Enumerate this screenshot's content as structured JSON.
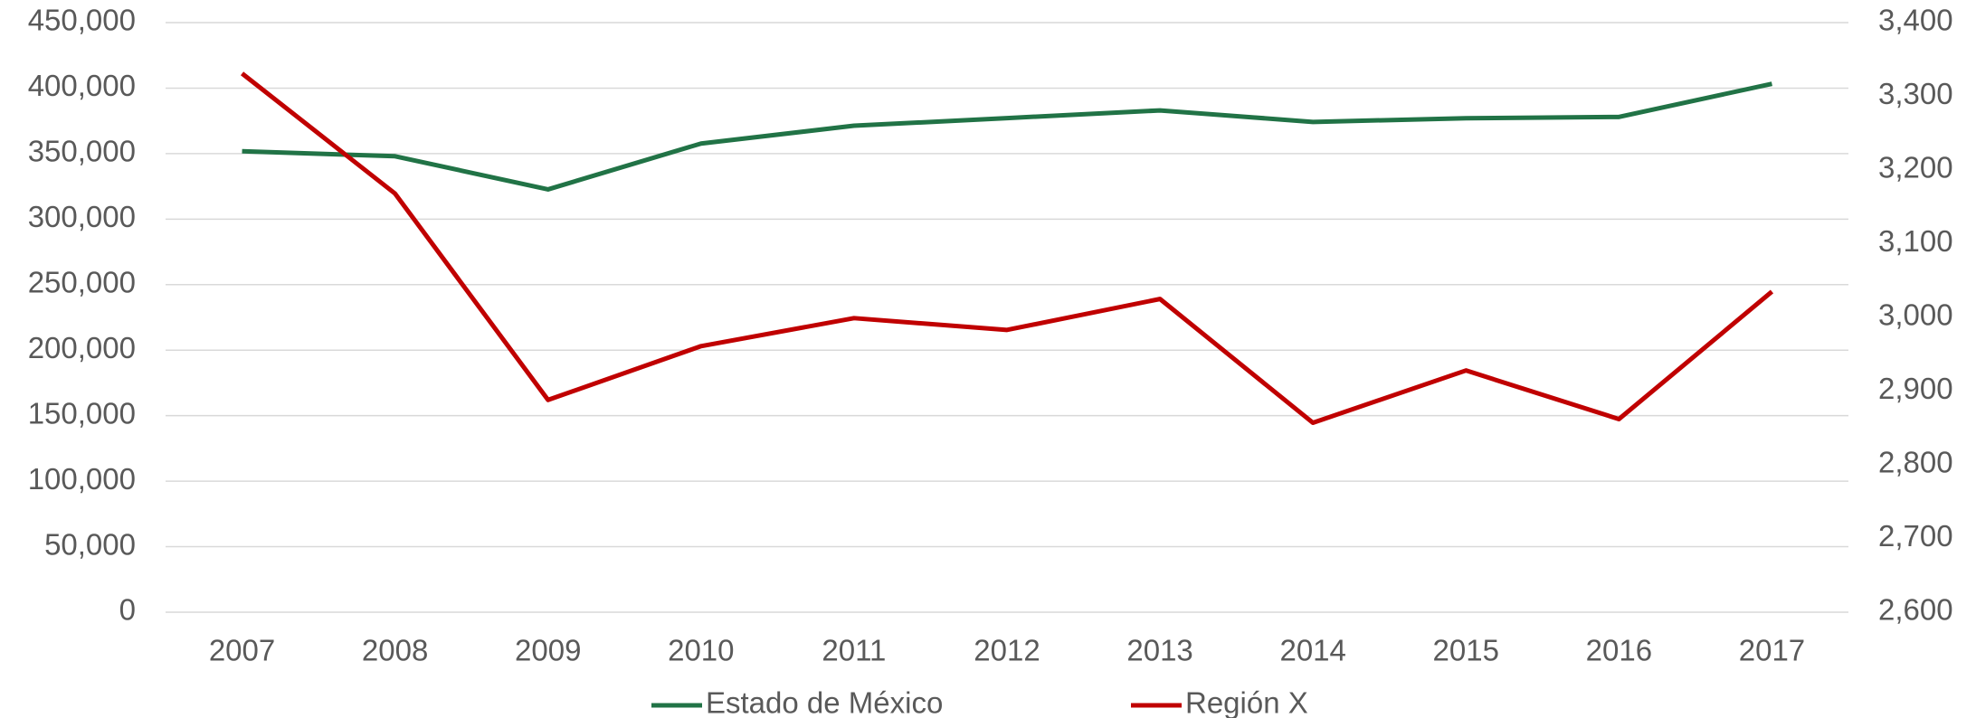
{
  "chart_data": {
    "type": "line",
    "x": [
      "2007",
      "2008",
      "2009",
      "2010",
      "2011",
      "2012",
      "2013",
      "2014",
      "2015",
      "2016",
      "2017"
    ],
    "series": [
      {
        "name": "Estado de México",
        "color": "#217346",
        "values": [
          351800,
          348000,
          322700,
          357700,
          371300,
          377100,
          383000,
          374200,
          377000,
          378000,
          403300
        ]
      },
      {
        "name": "Región X",
        "color": "#c00000",
        "axis": "y2",
        "values": [
          3331,
          3168,
          2888,
          2961,
          2999,
          2983,
          3025,
          2857,
          2928,
          2862,
          3035
        ]
      }
    ],
    "ylim": [
      0,
      450000
    ],
    "yticks": [
      {
        "value": 0,
        "label": "0"
      },
      {
        "value": 50000,
        "label": "50,000"
      },
      {
        "value": 100000,
        "label": "100,000"
      },
      {
        "value": 150000,
        "label": "150,000"
      },
      {
        "value": 200000,
        "label": "200,000"
      },
      {
        "value": 250000,
        "label": "250,000"
      },
      {
        "value": 300000,
        "label": "300,000"
      },
      {
        "value": 350000,
        "label": "350,000"
      },
      {
        "value": 400000,
        "label": "400,000"
      },
      {
        "value": 450000,
        "label": "450,000"
      }
    ],
    "y2lim": [
      2600,
      3400
    ],
    "y2ticks": [
      {
        "value": 2600,
        "label": "2,600"
      },
      {
        "value": 2700,
        "label": "2,700"
      },
      {
        "value": 2800,
        "label": "2,800"
      },
      {
        "value": 2900,
        "label": "2,900"
      },
      {
        "value": 3000,
        "label": "3,000"
      },
      {
        "value": 3100,
        "label": "3,100"
      },
      {
        "value": 3200,
        "label": "3,200"
      },
      {
        "value": 3300,
        "label": "3,300"
      },
      {
        "value": 3400,
        "label": "3,400"
      }
    ],
    "grid": true,
    "legend": "bottom"
  }
}
